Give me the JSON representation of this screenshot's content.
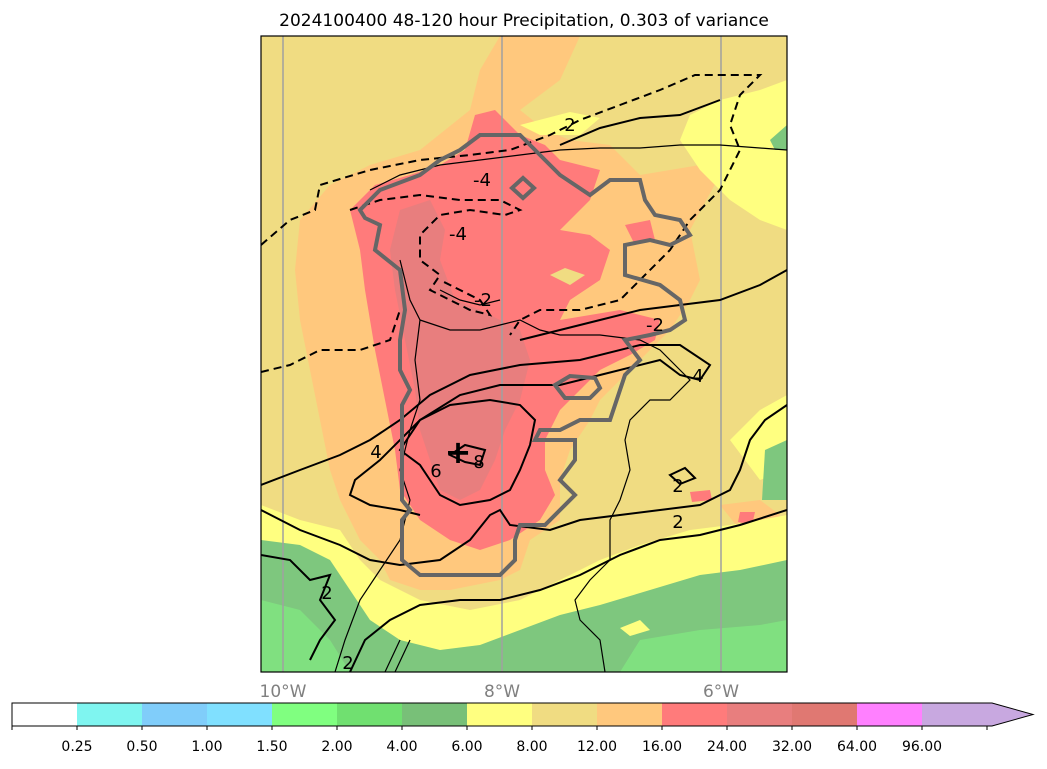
{
  "title": "2024100400 48-120 hour Precipitation, 0.303 of variance",
  "map": {
    "lon_labels": [
      "10°W",
      "8°W",
      "6°W"
    ],
    "contour_labels": {
      "pos_2_a": "2",
      "neg_2_a": "-2",
      "neg_2_b": "-2",
      "neg_4_a": "-4",
      "neg_4_b": "-4",
      "pos_4_a": "4",
      "pos_4_b": "4",
      "pos_6": "6",
      "pos_8": "8",
      "pos_2_b": "2",
      "pos_2_c": "2",
      "pos_2_d": "2",
      "pos_2_e": "2"
    },
    "marker": "+",
    "colors": {
      "c_8_12": "#f0dc82",
      "c_12_16": "#ffc87d",
      "c_16_24": "#ff7b7b",
      "c_24_32": "#e87e7e",
      "c_6_8": "#ffff80",
      "c_4_6": "#7ec77e",
      "c_2_4": "#80e080",
      "region_outline": "#666666",
      "gridline": "#a0a0a0"
    }
  },
  "colorbar": {
    "tick_labels": [
      "0.25",
      "0.50",
      "1.00",
      "1.50",
      "2.00",
      "4.00",
      "6.00",
      "8.00",
      "12.00",
      "16.00",
      "24.00",
      "32.00",
      "64.00",
      "96.00"
    ],
    "colors": [
      "#ffffff",
      "#7ff5f0",
      "#80cdfa",
      "#80e0ff",
      "#80ff80",
      "#70e070",
      "#78c078",
      "#ffff80",
      "#f0dc82",
      "#ffc87d",
      "#ff7b7b",
      "#e87e7e",
      "#e07872",
      "#ff80ff",
      "#c8a8e0"
    ]
  }
}
